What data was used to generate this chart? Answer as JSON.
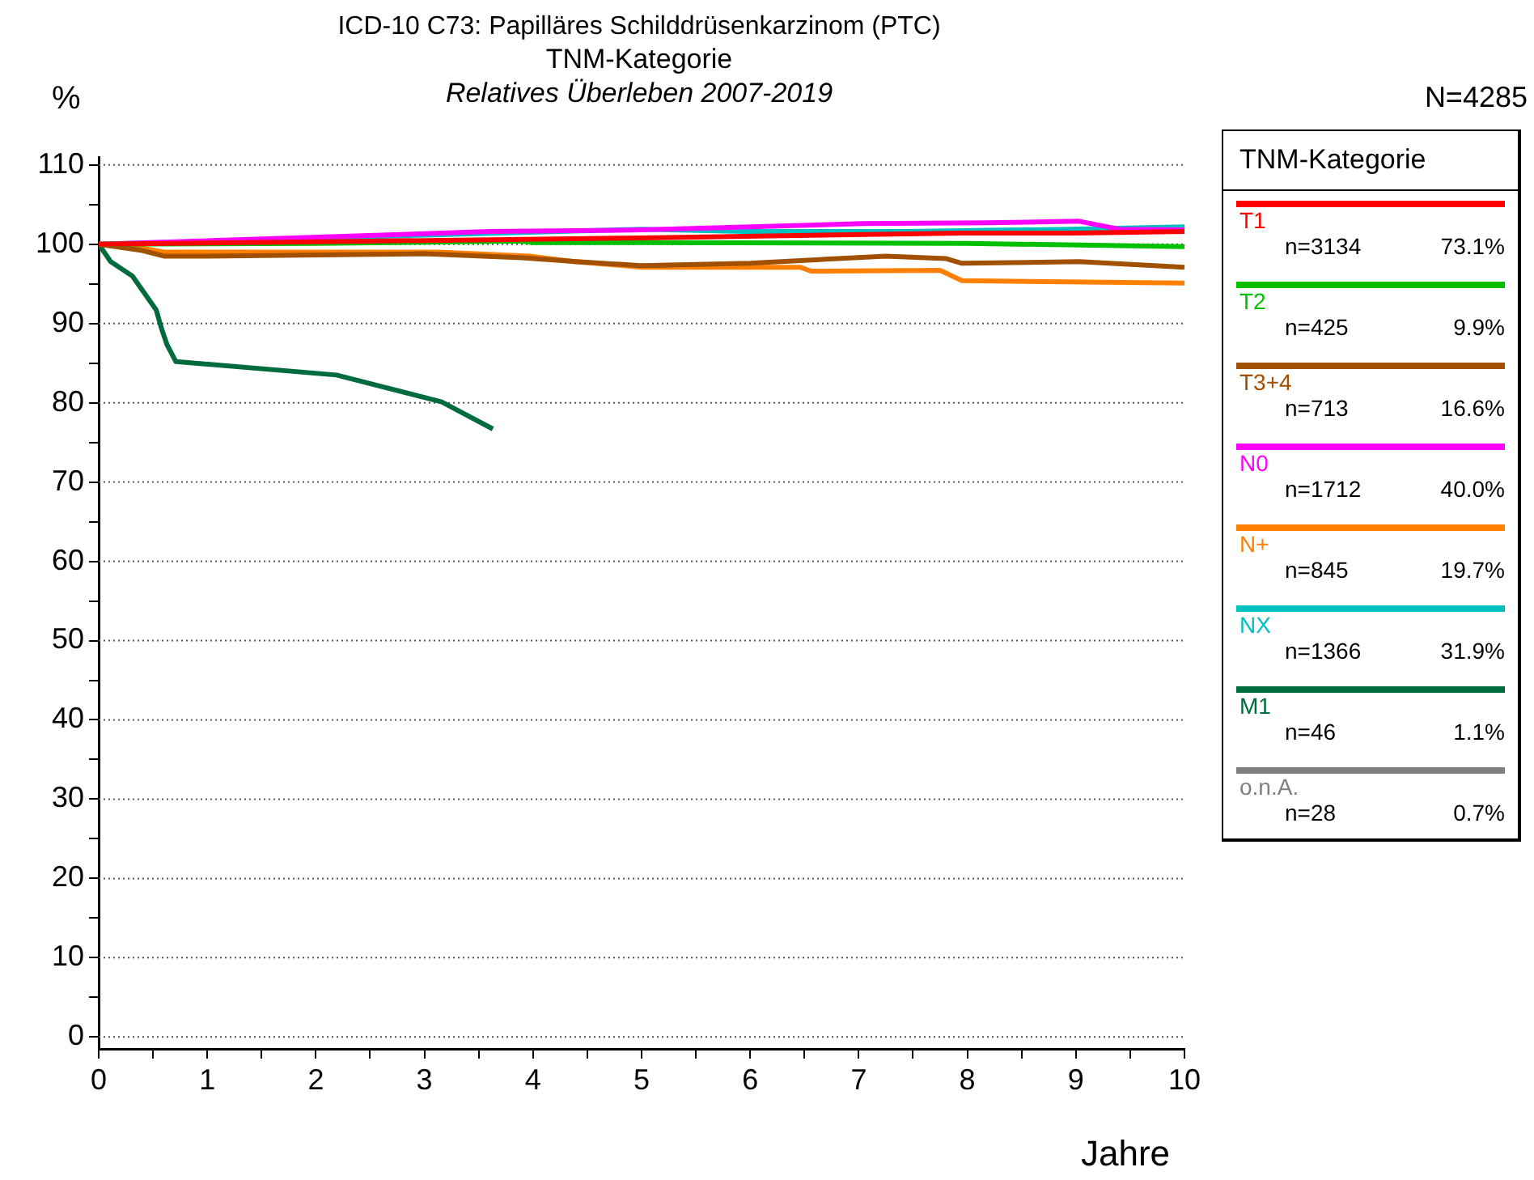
{
  "chart_data": {
    "type": "line",
    "title": "ICD-10 C73: Papilläres Schilddrüsenkarzinom (PTC)",
    "subtitle": "TNM-Kategorie",
    "xlabel": "Jahre",
    "ylabel": "%",
    "legend_title": "TNM-Kategorie",
    "legend": "right",
    "grid": "y",
    "marker": "none",
    "line_style": "solid",
    "annotations": [
      "Relatives Überleben 2007-2019",
      "N=4285",
      "n=3134",
      "73.1%",
      "n=425",
      "9.9%",
      "n=713",
      "16.6%",
      "n=1712",
      "40.0%",
      "n=845",
      "19.7%",
      "n=1366",
      "31.9%",
      "n=46",
      "1.1%",
      "n=28",
      "0.7%"
    ],
    "xlim": [
      0,
      10
    ],
    "ylim": [
      -1.5,
      111
    ],
    "xticks": [
      0,
      {
        "value": 0.5,
        "label": null
      },
      1,
      {
        "value": 1.5,
        "label": null
      },
      2,
      {
        "value": 2.5,
        "label": null
      },
      3,
      {
        "value": 3.5,
        "label": null
      },
      4,
      {
        "value": 4.5,
        "label": null
      },
      5,
      {
        "value": 5.5,
        "label": null
      },
      6,
      {
        "value": 6.5,
        "label": null
      },
      7,
      {
        "value": 7.5,
        "label": null
      },
      8,
      {
        "value": 8.5,
        "label": null
      },
      9,
      {
        "value": 9.5,
        "label": null
      },
      10
    ],
    "yticks": [
      0,
      {
        "value": 5,
        "label": null
      },
      10,
      {
        "value": 15,
        "label": null
      },
      20,
      {
        "value": 25,
        "label": null
      },
      30,
      {
        "value": 35,
        "label": null
      },
      40,
      {
        "value": 45,
        "label": null
      },
      50,
      {
        "value": 55,
        "label": null
      },
      60,
      {
        "value": 65,
        "label": null
      },
      70,
      {
        "value": 75,
        "label": null
      },
      80,
      {
        "value": 85,
        "label": null
      },
      90,
      {
        "value": 95,
        "label": null
      },
      100,
      {
        "value": 105,
        "label": null
      },
      110
    ],
    "series": [
      {
        "name": "T1",
        "color": "#ff0000",
        "x": [
          0,
          2,
          5,
          7.95,
          9,
          10
        ],
        "values": [
          100,
          100.3,
          100.8,
          101.4,
          101.4,
          101.6
        ]
      },
      {
        "name": "T2",
        "color": "#00c000",
        "x": [
          0,
          2,
          3.88,
          4,
          5,
          8,
          10
        ],
        "values": [
          100,
          100.1,
          100.4,
          100.2,
          100.2,
          100.1,
          99.7
        ]
      },
      {
        "name": "T3+4",
        "color": "#a05000",
        "x": [
          0,
          0.4,
          0.6,
          1,
          3,
          3.9,
          4.4,
          5,
          6,
          7.25,
          7.8,
          7.95,
          9.03,
          10
        ],
        "values": [
          100,
          99.2,
          98.5,
          98.5,
          98.8,
          98.3,
          97.8,
          97.3,
          97.6,
          98.5,
          98.2,
          97.6,
          97.8,
          97.1
        ]
      },
      {
        "name": "N0",
        "color": "#ff00ff",
        "x": [
          0,
          3.6,
          5,
          7.03,
          8.17,
          9.03,
          9.4,
          10
        ],
        "values": [
          100,
          101.6,
          101.8,
          102.6,
          102.7,
          102.9,
          101.9,
          101.8
        ]
      },
      {
        "name": "N+",
        "color": "#ff8000",
        "x": [
          0,
          0.4,
          0.6,
          3.13,
          3.97,
          4.38,
          5,
          6.46,
          6.56,
          7.75,
          7.95,
          9.98,
          10
        ],
        "values": [
          100,
          99.5,
          99,
          99,
          98.5,
          97.8,
          97.1,
          97.1,
          96.6,
          96.7,
          95.4,
          95.1,
          95.1
        ]
      },
      {
        "name": "NX",
        "color": "#00c0c0",
        "x": [
          0,
          5,
          5.96,
          7.45,
          8.94,
          10
        ],
        "values": [
          100,
          101.9,
          101.6,
          101.6,
          101.9,
          102.2
        ]
      },
      {
        "name": "M1",
        "color": "#006b3c",
        "x": [
          0,
          0.11,
          0.31,
          0.53,
          0.58,
          0.63,
          0.71,
          2.19,
          3.16,
          3.63
        ],
        "values": [
          100,
          97.8,
          96,
          91.7,
          89.3,
          87.3,
          85.2,
          83.5,
          80.1,
          76.7
        ]
      },
      {
        "name": "o.n.A.",
        "color": "#808080"
      }
    ]
  }
}
